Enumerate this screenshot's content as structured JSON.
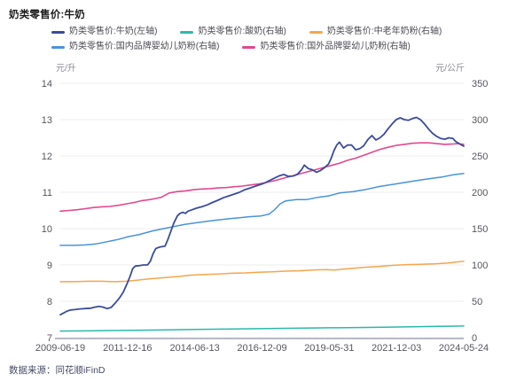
{
  "title": "奶类零售价:牛奶",
  "source": "数据来源：同花顺iFinD",
  "chart_data": {
    "type": "line",
    "title": "奶类零售价:牛奶",
    "grid": true,
    "legend_position": "top",
    "x_axis": {
      "ticks": [
        "2009-06-19",
        "2011-12-16",
        "2014-06-13",
        "2016-12-09",
        "2019-05-31",
        "2021-12-03",
        "2024-05-24"
      ],
      "range_years": [
        2009.47,
        2024.4
      ]
    },
    "left_axis": {
      "label": "元/升",
      "ticks": [
        14,
        13,
        12,
        11,
        10,
        9,
        8,
        7
      ],
      "range": [
        7,
        14
      ]
    },
    "right_axis": {
      "label": "元/公斤",
      "ticks": [
        350,
        300,
        250,
        200,
        150,
        100,
        50,
        0
      ],
      "range": [
        0,
        350
      ]
    },
    "colors": {
      "grid": "#ECECF3",
      "axis_line": "#B9BAC4",
      "tick_text": "#55555E"
    },
    "series": [
      {
        "key": "milk",
        "name": "奶类零售价:牛奶(左轴)",
        "axis": "left",
        "color": "#3B4C9C",
        "width": 1.8,
        "points": [
          [
            2009.47,
            7.63
          ],
          [
            2009.6,
            7.68
          ],
          [
            2009.72,
            7.73
          ],
          [
            2009.85,
            7.76
          ],
          [
            2010.0,
            7.77
          ],
          [
            2010.2,
            7.79
          ],
          [
            2010.4,
            7.8
          ],
          [
            2010.6,
            7.81
          ],
          [
            2010.75,
            7.84
          ],
          [
            2010.9,
            7.86
          ],
          [
            2011.05,
            7.84
          ],
          [
            2011.2,
            7.8
          ],
          [
            2011.35,
            7.83
          ],
          [
            2011.5,
            7.95
          ],
          [
            2011.65,
            8.08
          ],
          [
            2011.8,
            8.25
          ],
          [
            2011.95,
            8.5
          ],
          [
            2012.05,
            8.68
          ],
          [
            2012.15,
            8.9
          ],
          [
            2012.25,
            8.97
          ],
          [
            2012.4,
            8.98
          ],
          [
            2012.55,
            9.0
          ],
          [
            2012.7,
            9.0
          ],
          [
            2012.8,
            9.1
          ],
          [
            2012.9,
            9.3
          ],
          [
            2013.0,
            9.45
          ],
          [
            2013.1,
            9.48
          ],
          [
            2013.2,
            9.5
          ],
          [
            2013.35,
            9.52
          ],
          [
            2013.45,
            9.7
          ],
          [
            2013.55,
            9.9
          ],
          [
            2013.67,
            10.15
          ],
          [
            2013.8,
            10.35
          ],
          [
            2013.9,
            10.42
          ],
          [
            2014.0,
            10.45
          ],
          [
            2014.1,
            10.42
          ],
          [
            2014.2,
            10.48
          ],
          [
            2014.35,
            10.52
          ],
          [
            2014.5,
            10.56
          ],
          [
            2014.7,
            10.6
          ],
          [
            2014.9,
            10.65
          ],
          [
            2015.1,
            10.72
          ],
          [
            2015.3,
            10.78
          ],
          [
            2015.5,
            10.85
          ],
          [
            2015.7,
            10.9
          ],
          [
            2015.9,
            10.95
          ],
          [
            2016.1,
            11.0
          ],
          [
            2016.3,
            11.07
          ],
          [
            2016.5,
            11.12
          ],
          [
            2016.7,
            11.17
          ],
          [
            2016.9,
            11.22
          ],
          [
            2017.05,
            11.26
          ],
          [
            2017.2,
            11.32
          ],
          [
            2017.45,
            11.41
          ],
          [
            2017.6,
            11.46
          ],
          [
            2017.75,
            11.49
          ],
          [
            2017.9,
            11.44
          ],
          [
            2018.1,
            11.45
          ],
          [
            2018.25,
            11.5
          ],
          [
            2018.4,
            11.62
          ],
          [
            2018.5,
            11.75
          ],
          [
            2018.65,
            11.65
          ],
          [
            2018.8,
            11.62
          ],
          [
            2018.95,
            11.55
          ],
          [
            2019.1,
            11.6
          ],
          [
            2019.25,
            11.68
          ],
          [
            2019.4,
            11.78
          ],
          [
            2019.5,
            11.95
          ],
          [
            2019.6,
            12.15
          ],
          [
            2019.7,
            12.3
          ],
          [
            2019.8,
            12.38
          ],
          [
            2019.95,
            12.22
          ],
          [
            2020.1,
            12.3
          ],
          [
            2020.25,
            12.3
          ],
          [
            2020.4,
            12.17
          ],
          [
            2020.55,
            12.2
          ],
          [
            2020.7,
            12.28
          ],
          [
            2020.85,
            12.45
          ],
          [
            2021.0,
            12.56
          ],
          [
            2021.15,
            12.44
          ],
          [
            2021.3,
            12.5
          ],
          [
            2021.45,
            12.6
          ],
          [
            2021.6,
            12.75
          ],
          [
            2021.75,
            12.88
          ],
          [
            2021.9,
            13.0
          ],
          [
            2022.05,
            13.05
          ],
          [
            2022.2,
            13.0
          ],
          [
            2022.35,
            12.98
          ],
          [
            2022.5,
            13.03
          ],
          [
            2022.65,
            13.06
          ],
          [
            2022.8,
            13.0
          ],
          [
            2022.95,
            12.88
          ],
          [
            2023.1,
            12.74
          ],
          [
            2023.25,
            12.62
          ],
          [
            2023.4,
            12.54
          ],
          [
            2023.55,
            12.48
          ],
          [
            2023.7,
            12.46
          ],
          [
            2023.85,
            12.5
          ],
          [
            2024.0,
            12.48
          ],
          [
            2024.1,
            12.4
          ],
          [
            2024.25,
            12.33
          ],
          [
            2024.4,
            12.27
          ]
        ]
      },
      {
        "key": "yogurt",
        "name": "奶类零售价:酸奶(右轴)",
        "axis": "right",
        "color": "#2BB8AA",
        "width": 1.5,
        "points": [
          [
            2009.47,
            9.0
          ],
          [
            2010.5,
            9.3
          ],
          [
            2011.5,
            9.7
          ],
          [
            2012.5,
            10.2
          ],
          [
            2013.5,
            10.7
          ],
          [
            2014.5,
            11.2
          ],
          [
            2015.5,
            11.7
          ],
          [
            2016.5,
            12.2
          ],
          [
            2017.5,
            12.7
          ],
          [
            2018.5,
            13.1
          ],
          [
            2019.5,
            13.5
          ],
          [
            2020.5,
            13.9
          ],
          [
            2021.5,
            14.4
          ],
          [
            2022.5,
            15.0
          ],
          [
            2023.5,
            15.5
          ],
          [
            2024.4,
            16.0
          ]
        ]
      },
      {
        "key": "elderly-milk-powder",
        "name": "奶类零售价:中老年奶粉(右轴)",
        "axis": "right",
        "color": "#F6A54C",
        "width": 1.5,
        "points": [
          [
            2009.47,
            77
          ],
          [
            2010.0,
            77
          ],
          [
            2010.5,
            77.5
          ],
          [
            2011.0,
            77.5
          ],
          [
            2011.5,
            77
          ],
          [
            2011.9,
            77.5
          ],
          [
            2012.3,
            79
          ],
          [
            2012.8,
            81
          ],
          [
            2013.3,
            82.5
          ],
          [
            2013.8,
            84
          ],
          [
            2014.3,
            86
          ],
          [
            2014.8,
            87
          ],
          [
            2015.3,
            87.5
          ],
          [
            2015.8,
            88.5
          ],
          [
            2016.3,
            89
          ],
          [
            2016.8,
            90
          ],
          [
            2017.3,
            90.5
          ],
          [
            2017.8,
            91.5
          ],
          [
            2018.3,
            92
          ],
          [
            2018.8,
            93
          ],
          [
            2019.3,
            93.5
          ],
          [
            2019.6,
            93
          ],
          [
            2019.9,
            94
          ],
          [
            2020.3,
            95.5
          ],
          [
            2020.8,
            97
          ],
          [
            2021.3,
            98
          ],
          [
            2021.8,
            99.5
          ],
          [
            2022.3,
            100.5
          ],
          [
            2022.8,
            101
          ],
          [
            2023.3,
            101.5
          ],
          [
            2023.8,
            102.5
          ],
          [
            2024.1,
            104
          ],
          [
            2024.4,
            105
          ]
        ]
      },
      {
        "key": "domestic-infant-formula",
        "name": "奶类零售价:国内品牌婴幼儿奶粉(右轴)",
        "axis": "right",
        "color": "#4793DB",
        "width": 1.5,
        "points": [
          [
            2009.47,
            127
          ],
          [
            2010.0,
            127
          ],
          [
            2010.4,
            127.5
          ],
          [
            2010.8,
            129
          ],
          [
            2011.2,
            132
          ],
          [
            2011.6,
            135
          ],
          [
            2012.0,
            139
          ],
          [
            2012.4,
            142
          ],
          [
            2012.9,
            147
          ],
          [
            2013.3,
            150
          ],
          [
            2013.7,
            153
          ],
          [
            2014.1,
            156
          ],
          [
            2014.5,
            158
          ],
          [
            2014.9,
            160
          ],
          [
            2015.3,
            162
          ],
          [
            2015.7,
            163.5
          ],
          [
            2016.1,
            165
          ],
          [
            2016.5,
            166.5
          ],
          [
            2016.9,
            167.5
          ],
          [
            2017.2,
            170
          ],
          [
            2017.4,
            176
          ],
          [
            2017.6,
            184
          ],
          [
            2017.8,
            188
          ],
          [
            2018.2,
            190
          ],
          [
            2018.6,
            190
          ],
          [
            2019.0,
            193
          ],
          [
            2019.4,
            195
          ],
          [
            2019.8,
            199
          ],
          [
            2020.3,
            201
          ],
          [
            2020.8,
            204
          ],
          [
            2021.3,
            208
          ],
          [
            2021.8,
            211
          ],
          [
            2022.3,
            214
          ],
          [
            2022.8,
            217
          ],
          [
            2023.2,
            219
          ],
          [
            2023.6,
            221
          ],
          [
            2024.0,
            224
          ],
          [
            2024.4,
            226
          ]
        ]
      },
      {
        "key": "foreign-infant-formula",
        "name": "奶类零售价:国外品牌婴幼儿奶粉(右轴)",
        "axis": "right",
        "color": "#E3488E",
        "width": 1.6,
        "points": [
          [
            2009.47,
            174
          ],
          [
            2009.8,
            175
          ],
          [
            2010.1,
            176
          ],
          [
            2010.4,
            177.5
          ],
          [
            2010.7,
            179
          ],
          [
            2011.0,
            180
          ],
          [
            2011.3,
            180.5
          ],
          [
            2011.6,
            182
          ],
          [
            2011.9,
            184
          ],
          [
            2012.2,
            186
          ],
          [
            2012.5,
            188.5
          ],
          [
            2012.8,
            190
          ],
          [
            2013.0,
            191.5
          ],
          [
            2013.2,
            193
          ],
          [
            2013.5,
            199
          ],
          [
            2013.8,
            201
          ],
          [
            2014.1,
            202
          ],
          [
            2014.4,
            203.5
          ],
          [
            2014.7,
            204.5
          ],
          [
            2015.0,
            205
          ],
          [
            2015.3,
            206
          ],
          [
            2015.6,
            206.5
          ],
          [
            2015.9,
            207.5
          ],
          [
            2016.2,
            208.5
          ],
          [
            2016.5,
            210
          ],
          [
            2016.8,
            211.5
          ],
          [
            2017.1,
            213.5
          ],
          [
            2017.4,
            216
          ],
          [
            2017.7,
            219
          ],
          [
            2018.0,
            222
          ],
          [
            2018.3,
            225
          ],
          [
            2018.6,
            228
          ],
          [
            2018.9,
            231
          ],
          [
            2019.2,
            234
          ],
          [
            2019.5,
            237
          ],
          [
            2019.8,
            240
          ],
          [
            2020.1,
            244
          ],
          [
            2020.4,
            247
          ],
          [
            2020.7,
            251
          ],
          [
            2021.0,
            255
          ],
          [
            2021.3,
            259
          ],
          [
            2021.6,
            262
          ],
          [
            2021.9,
            264.5
          ],
          [
            2022.2,
            266
          ],
          [
            2022.5,
            267.5
          ],
          [
            2022.8,
            268
          ],
          [
            2023.1,
            268
          ],
          [
            2023.4,
            267
          ],
          [
            2023.7,
            266
          ],
          [
            2024.0,
            266.5
          ],
          [
            2024.2,
            267
          ],
          [
            2024.4,
            266
          ]
        ]
      }
    ]
  }
}
